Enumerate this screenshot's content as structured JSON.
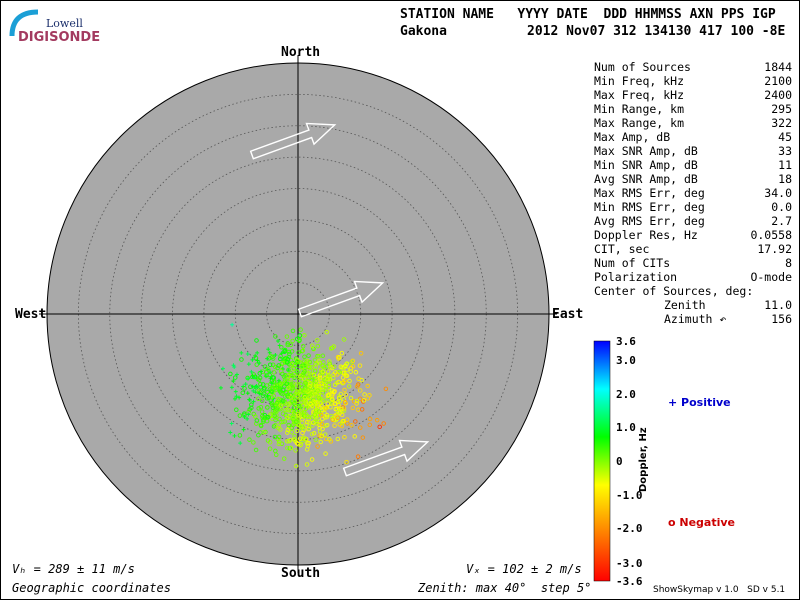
{
  "header": {
    "row1": "STATION NAME   YYYY DATE  DDD HHMMSS AXN PPS IGP",
    "station": "Gakona",
    "row2": "2012 Nov07 312 134130 417 100 -8E"
  },
  "logo": {
    "line1": "Lowell",
    "line2": "DIGISONDE"
  },
  "directions": {
    "north": "North",
    "south": "South",
    "east": "East",
    "west": "West"
  },
  "stats": [
    {
      "label": "Num of Sources",
      "value": "1844"
    },
    {
      "label": "Min Freq, kHz",
      "value": "2100"
    },
    {
      "label": "Max Freq, kHz",
      "value": "2400"
    },
    {
      "label": "Min Range, km",
      "value": "295"
    },
    {
      "label": "Max Range, km",
      "value": "322"
    },
    {
      "label": "Max Amp, dB",
      "value": "45"
    },
    {
      "label": "Max SNR Amp, dB",
      "value": "33"
    },
    {
      "label": "Min SNR Amp, dB",
      "value": "11"
    },
    {
      "label": "Avg SNR Amp, dB",
      "value": "18"
    },
    {
      "label": "Max RMS Err, deg",
      "value": "34.0"
    },
    {
      "label": "Min RMS Err, deg",
      "value": "0.0"
    },
    {
      "label": "Avg RMS Err, deg",
      "value": "2.7"
    },
    {
      "label": "Doppler Res, Hz",
      "value": "0.0558"
    },
    {
      "label": "CIT, sec",
      "value": "17.92"
    },
    {
      "label": "Num of CITs",
      "value": "8"
    },
    {
      "label": "Polarization",
      "value": "O-mode"
    },
    {
      "label": "Center of Sources, deg:",
      "value": ""
    },
    {
      "label": "Zenith",
      "value": "11.0"
    },
    {
      "label": "Azimuth ↶",
      "value": "156"
    }
  ],
  "colorbar": {
    "title": "Doppler, Hz",
    "ticks": [
      "3.6",
      "3.0",
      "2.0",
      "1.0",
      "0",
      "-1.0",
      "-2.0",
      "-3.0",
      "-3.6"
    ],
    "positive_label": "+ Positive",
    "negative_label": "o Negative",
    "positive_color": "#0000cc",
    "negative_color": "#cc0000"
  },
  "footer": {
    "vh": "Vₕ = 289 ± 11 m/s",
    "vz": "Vₓ = 102 ± 2 m/s",
    "coords": "Geographic coordinates",
    "zenith": "Zenith: max 40°  step 5°",
    "version": "ShowSkymap v 1.0   SD v 5.1"
  },
  "colors": {
    "disk": "#a9a9a9",
    "ring": "#555555",
    "arrow": "#ffffff"
  },
  "chart_data": {
    "type": "scatter",
    "projection": "polar skymap",
    "zenith_max_deg": 40,
    "zenith_step_deg": 5,
    "color_range_hz": [
      -3.6,
      3.6
    ],
    "center_of_sources": {
      "zenith_deg": 11.0,
      "azimuth_deg": 156
    },
    "num_sources": 1844,
    "velocity_arrows_deg_azimuth": [
      70,
      70,
      70
    ],
    "sample_points": [
      {
        "x": -8,
        "y": -4,
        "doppler": 0.8
      },
      {
        "x": -5,
        "y": -8,
        "doppler": -0.6
      },
      {
        "x": -2,
        "y": -14,
        "doppler": -1.2
      },
      {
        "x": 2,
        "y": -12,
        "doppler": -1.5
      },
      {
        "x": -12,
        "y": -2,
        "doppler": 1.6
      }
    ]
  }
}
